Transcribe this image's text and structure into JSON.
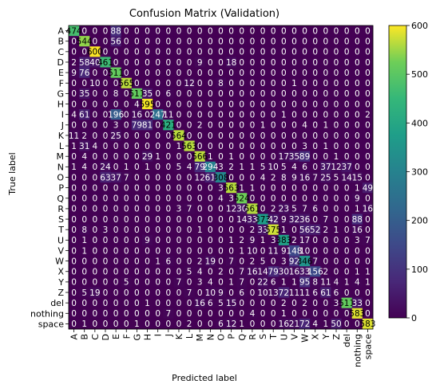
{
  "chart_data": {
    "type": "heatmap",
    "title": "Confusion Matrix (Validation)",
    "xlabel": "Predicted label",
    "ylabel": "True label",
    "labels": [
      "A",
      "B",
      "C",
      "D",
      "E",
      "F",
      "G",
      "H",
      "I",
      "J",
      "K",
      "L",
      "M",
      "N",
      "O",
      "P",
      "Q",
      "R",
      "S",
      "T",
      "U",
      "V",
      "W",
      "X",
      "Y",
      "Z",
      "del",
      "nothing",
      "space"
    ],
    "colorbar_ticks": [
      0,
      100,
      200,
      300,
      400,
      500,
      600
    ],
    "vmin": 0,
    "vmax": 600,
    "colormap": "viridis",
    "matrix": [
      [
        474,
        0,
        0,
        0,
        88,
        0,
        0,
        0,
        0,
        0,
        0,
        0,
        0,
        0,
        0,
        0,
        0,
        0,
        0,
        0,
        0,
        0,
        0,
        0,
        0,
        0,
        0,
        0,
        0
      ],
      [
        0,
        544,
        0,
        0,
        56,
        0,
        0,
        0,
        0,
        0,
        0,
        0,
        0,
        0,
        0,
        0,
        0,
        0,
        0,
        0,
        0,
        0,
        0,
        0,
        0,
        0,
        0,
        0,
        0
      ],
      [
        0,
        0,
        600,
        0,
        0,
        0,
        0,
        0,
        0,
        0,
        0,
        0,
        0,
        0,
        0,
        0,
        0,
        0,
        0,
        0,
        0,
        0,
        0,
        0,
        0,
        0,
        0,
        0,
        0
      ],
      [
        2,
        58,
        40,
        461,
        0,
        0,
        0,
        0,
        0,
        0,
        0,
        0,
        9,
        0,
        0,
        18,
        0,
        0,
        0,
        0,
        0,
        0,
        0,
        0,
        0,
        0,
        0,
        0,
        0
      ],
      [
        9,
        76,
        0,
        0,
        511,
        0,
        0,
        0,
        0,
        0,
        0,
        0,
        0,
        0,
        0,
        0,
        0,
        0,
        0,
        0,
        0,
        0,
        0,
        0,
        0,
        0,
        0,
        0,
        0
      ],
      [
        0,
        0,
        10,
        0,
        0,
        565,
        0,
        0,
        0,
        0,
        0,
        12,
        0,
        0,
        8,
        0,
        0,
        0,
        0,
        0,
        0,
        1,
        0,
        0,
        0,
        0,
        0,
        0,
        0
      ],
      [
        0,
        35,
        0,
        0,
        8,
        0,
        511,
        35,
        0,
        6,
        0,
        0,
        0,
        0,
        0,
        0,
        0,
        0,
        0,
        0,
        0,
        0,
        0,
        0,
        0,
        0,
        0,
        0,
        0
      ],
      [
        0,
        0,
        0,
        0,
        0,
        0,
        4,
        595,
        0,
        0,
        0,
        0,
        0,
        0,
        0,
        0,
        0,
        0,
        0,
        0,
        0,
        0,
        0,
        0,
        0,
        0,
        0,
        0,
        0
      ],
      [
        4,
        61,
        0,
        0,
        196,
        0,
        16,
        0,
        247,
        11,
        0,
        0,
        0,
        0,
        0,
        0,
        0,
        0,
        0,
        0,
        1,
        0,
        0,
        0,
        0,
        0,
        0,
        0,
        2
      ],
      [
        0,
        0,
        0,
        0,
        3,
        0,
        79,
        81,
        0,
        421,
        0,
        0,
        2,
        0,
        0,
        0,
        0,
        0,
        1,
        0,
        0,
        0,
        4,
        0,
        1,
        0,
        0,
        0,
        0
      ],
      [
        11,
        2,
        0,
        0,
        25,
        0,
        0,
        0,
        0,
        0,
        564,
        0,
        0,
        0,
        0,
        0,
        0,
        0,
        0,
        0,
        0,
        0,
        0,
        0,
        0,
        0,
        0,
        0,
        0
      ],
      [
        1,
        31,
        4,
        0,
        0,
        0,
        0,
        0,
        0,
        0,
        1,
        563,
        0,
        0,
        0,
        0,
        0,
        0,
        0,
        0,
        0,
        0,
        3,
        0,
        1,
        0,
        0,
        0,
        0
      ],
      [
        0,
        4,
        0,
        0,
        0,
        0,
        0,
        29,
        1,
        0,
        0,
        0,
        566,
        1,
        0,
        1,
        0,
        0,
        0,
        0,
        17,
        35,
        89,
        0,
        0,
        1,
        0,
        0,
        0
      ],
      [
        1,
        4,
        0,
        24,
        0,
        1,
        0,
        1,
        0,
        0,
        5,
        4,
        79,
        294,
        3,
        2,
        1,
        1,
        5,
        10,
        5,
        4,
        6,
        0,
        37,
        12,
        37,
        0,
        0
      ],
      [
        0,
        0,
        0,
        63,
        37,
        7,
        0,
        0,
        0,
        0,
        0,
        0,
        12,
        61,
        308,
        0,
        0,
        0,
        4,
        2,
        8,
        9,
        16,
        7,
        25,
        5,
        14,
        15,
        0
      ],
      [
        0,
        0,
        0,
        0,
        0,
        0,
        0,
        0,
        0,
        0,
        0,
        0,
        0,
        0,
        3,
        563,
        1,
        1,
        0,
        0,
        0,
        0,
        0,
        0,
        0,
        0,
        0,
        1,
        49
      ],
      [
        0,
        0,
        0,
        0,
        0,
        0,
        0,
        0,
        0,
        0,
        0,
        0,
        0,
        0,
        4,
        3,
        524,
        0,
        0,
        0,
        0,
        0,
        0,
        0,
        0,
        0,
        0,
        9,
        0
      ],
      [
        0,
        0,
        0,
        0,
        0,
        0,
        0,
        0,
        0,
        0,
        3,
        7,
        0,
        0,
        0,
        12,
        30,
        561,
        0,
        2,
        23,
        5,
        7,
        6,
        0,
        0,
        0,
        1,
        16
      ],
      [
        0,
        0,
        0,
        0,
        0,
        0,
        0,
        0,
        0,
        0,
        0,
        0,
        0,
        0,
        0,
        0,
        14,
        33,
        373,
        42,
        9,
        32,
        36,
        0,
        7,
        0,
        0,
        88,
        0
      ],
      [
        0,
        8,
        0,
        3,
        0,
        0,
        0,
        0,
        0,
        0,
        0,
        0,
        1,
        0,
        0,
        0,
        0,
        2,
        33,
        575,
        1,
        0,
        56,
        52,
        2,
        1,
        0,
        16,
        0
      ],
      [
        0,
        1,
        0,
        0,
        0,
        0,
        0,
        9,
        0,
        0,
        0,
        0,
        0,
        0,
        0,
        1,
        2,
        9,
        1,
        3,
        383,
        2,
        17,
        0,
        0,
        0,
        0,
        3,
        7
      ],
      [
        0,
        1,
        0,
        0,
        0,
        0,
        0,
        0,
        0,
        0,
        0,
        0,
        0,
        0,
        0,
        0,
        1,
        10,
        0,
        11,
        9,
        148,
        10,
        0,
        0,
        0,
        0,
        0,
        0
      ],
      [
        0,
        0,
        0,
        0,
        0,
        0,
        0,
        0,
        1,
        6,
        0,
        0,
        2,
        19,
        0,
        7,
        0,
        2,
        5,
        0,
        3,
        92,
        346,
        7,
        0,
        0,
        0,
        0,
        0
      ],
      [
        0,
        0,
        0,
        0,
        0,
        0,
        0,
        0,
        0,
        0,
        0,
        5,
        4,
        0,
        2,
        0,
        7,
        16,
        14,
        79,
        30,
        16,
        33,
        156,
        2,
        0,
        0,
        1,
        1
      ],
      [
        0,
        0,
        0,
        0,
        0,
        5,
        0,
        0,
        0,
        0,
        7,
        0,
        3,
        4,
        0,
        1,
        7,
        0,
        22,
        6,
        1,
        1,
        95,
        8,
        11,
        4,
        1,
        4,
        1
      ],
      [
        0,
        5,
        19,
        0,
        0,
        0,
        0,
        0,
        0,
        0,
        0,
        7,
        0,
        10,
        9,
        0,
        6,
        0,
        10,
        13,
        72,
        11,
        11,
        6,
        61,
        6,
        0,
        0,
        0
      ],
      [
        0,
        0,
        0,
        0,
        0,
        0,
        0,
        1,
        0,
        0,
        0,
        0,
        16,
        6,
        5,
        15,
        0,
        0,
        0,
        0,
        2,
        0,
        2,
        0,
        0,
        3,
        511,
        33,
        0
      ],
      [
        0,
        0,
        0,
        0,
        0,
        0,
        0,
        0,
        0,
        7,
        0,
        0,
        0,
        0,
        0,
        0,
        0,
        4,
        0,
        0,
        1,
        0,
        0,
        0,
        0,
        0,
        0,
        583,
        0
      ],
      [
        0,
        1,
        0,
        0,
        0,
        0,
        1,
        0,
        0,
        0,
        0,
        2,
        0,
        0,
        6,
        12,
        1,
        0,
        0,
        0,
        16,
        21,
        72,
        4,
        1,
        50,
        0,
        0,
        583
      ]
    ]
  }
}
